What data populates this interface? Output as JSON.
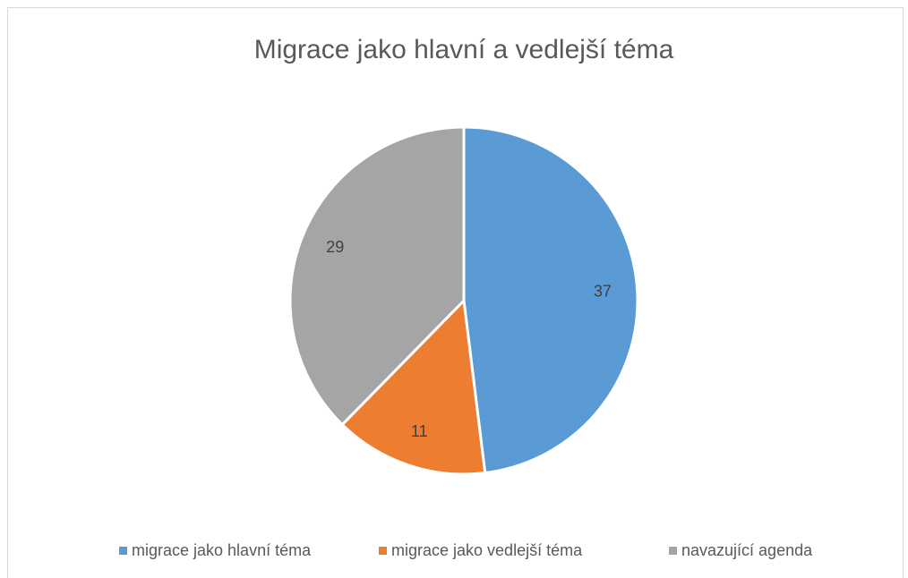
{
  "chart_data": {
    "type": "pie",
    "title": "Migrace jako hlavní a vedlejší téma",
    "categories": [
      "migrace jako hlavní téma",
      "migrace jako vedlejší téma",
      "navazující agenda"
    ],
    "values": [
      37,
      11,
      29
    ],
    "colors": [
      "#5b9bd5",
      "#ed7d31",
      "#a5a5a5"
    ],
    "legend": "bottom"
  }
}
